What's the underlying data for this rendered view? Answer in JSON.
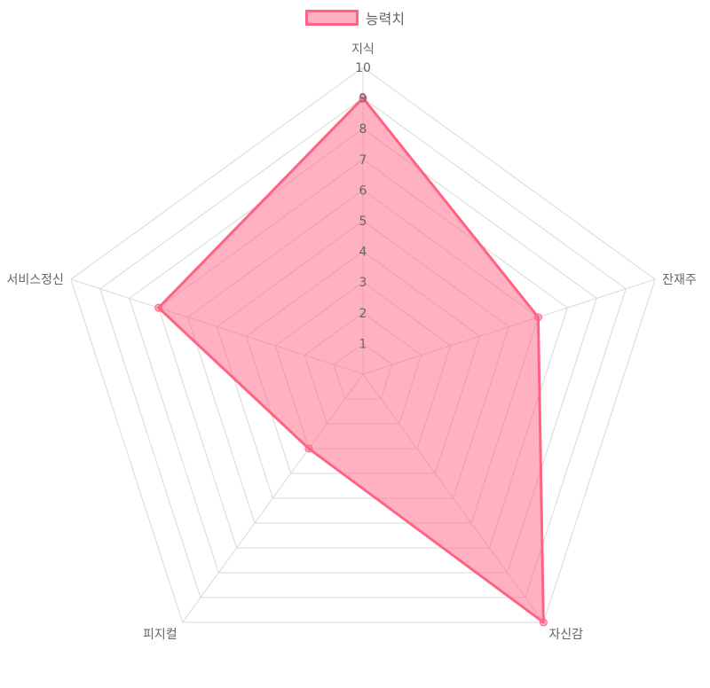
{
  "chart_data": {
    "type": "radar",
    "categories": [
      "지식",
      "잔재주",
      "자신감",
      "피지컬",
      "서비스정신"
    ],
    "series": [
      {
        "name": "능력치",
        "values": [
          9,
          6,
          10,
          3,
          7
        ]
      }
    ],
    "r_range": [
      0,
      10
    ],
    "r_ticks": [
      "1",
      "2",
      "3",
      "4",
      "5",
      "6",
      "7",
      "8",
      "9",
      "10"
    ],
    "grid": true,
    "legend_position": "top",
    "colors": {
      "line": "#ff6384",
      "fill": "rgba(255, 99, 132, 0.5)",
      "grid": "#d9d9d9",
      "text": "#666666"
    }
  }
}
